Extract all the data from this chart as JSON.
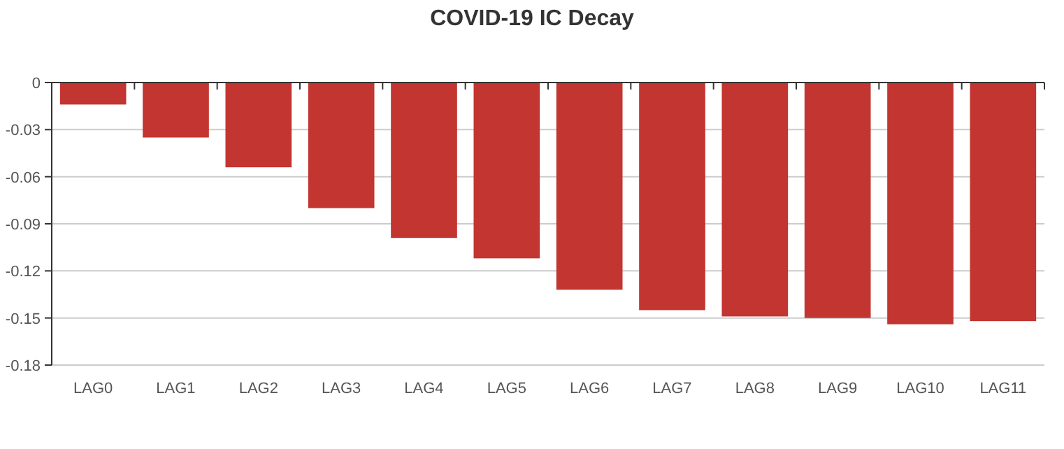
{
  "chart_data": {
    "type": "bar",
    "title": "COVID-19 IC Decay",
    "categories": [
      "LAG0",
      "LAG1",
      "LAG2",
      "LAG3",
      "LAG4",
      "LAG5",
      "LAG6",
      "LAG7",
      "LAG8",
      "LAG9",
      "LAG10",
      "LAG11"
    ],
    "values": [
      -0.014,
      -0.035,
      -0.054,
      -0.08,
      -0.099,
      -0.112,
      -0.132,
      -0.145,
      -0.149,
      -0.15,
      -0.154,
      -0.152
    ],
    "color": "#c23531",
    "ylim": [
      -0.18,
      0
    ],
    "yticks": [
      0,
      -0.03,
      -0.06,
      -0.09,
      -0.12,
      -0.15,
      -0.18
    ],
    "grid": "y"
  }
}
